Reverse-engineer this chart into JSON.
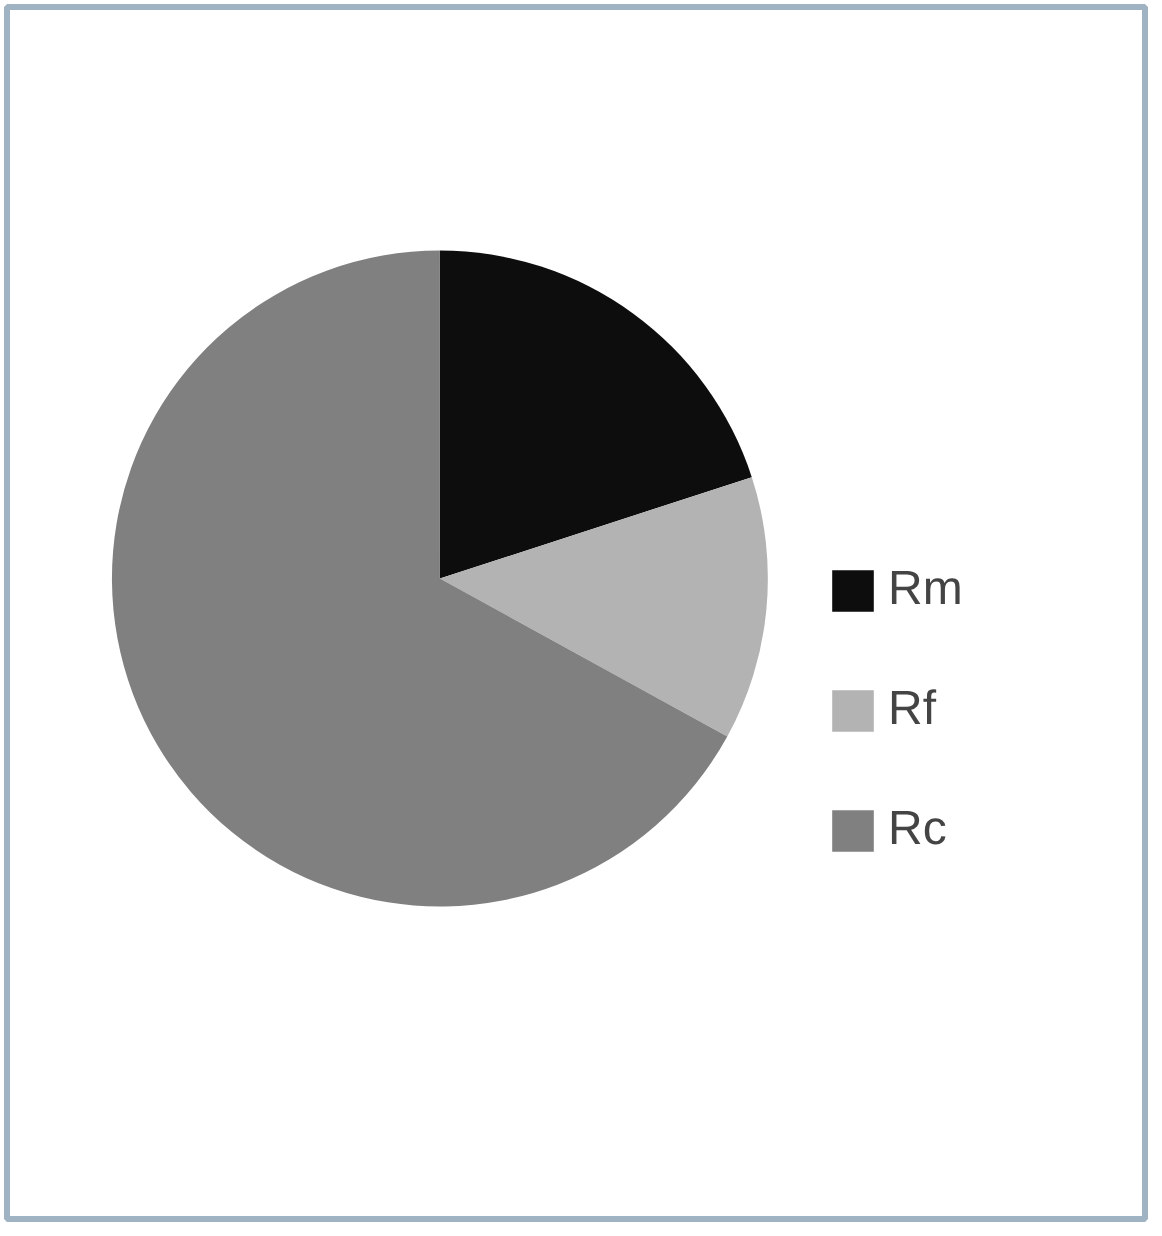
{
  "chart_data": {
    "type": "pie",
    "categories": [
      "Rm",
      "Rf",
      "Rc"
    ],
    "values": [
      20,
      13,
      67
    ],
    "colors": [
      "#0d0d0d",
      "#b3b3b3",
      "#808080"
    ],
    "legend": "right"
  }
}
